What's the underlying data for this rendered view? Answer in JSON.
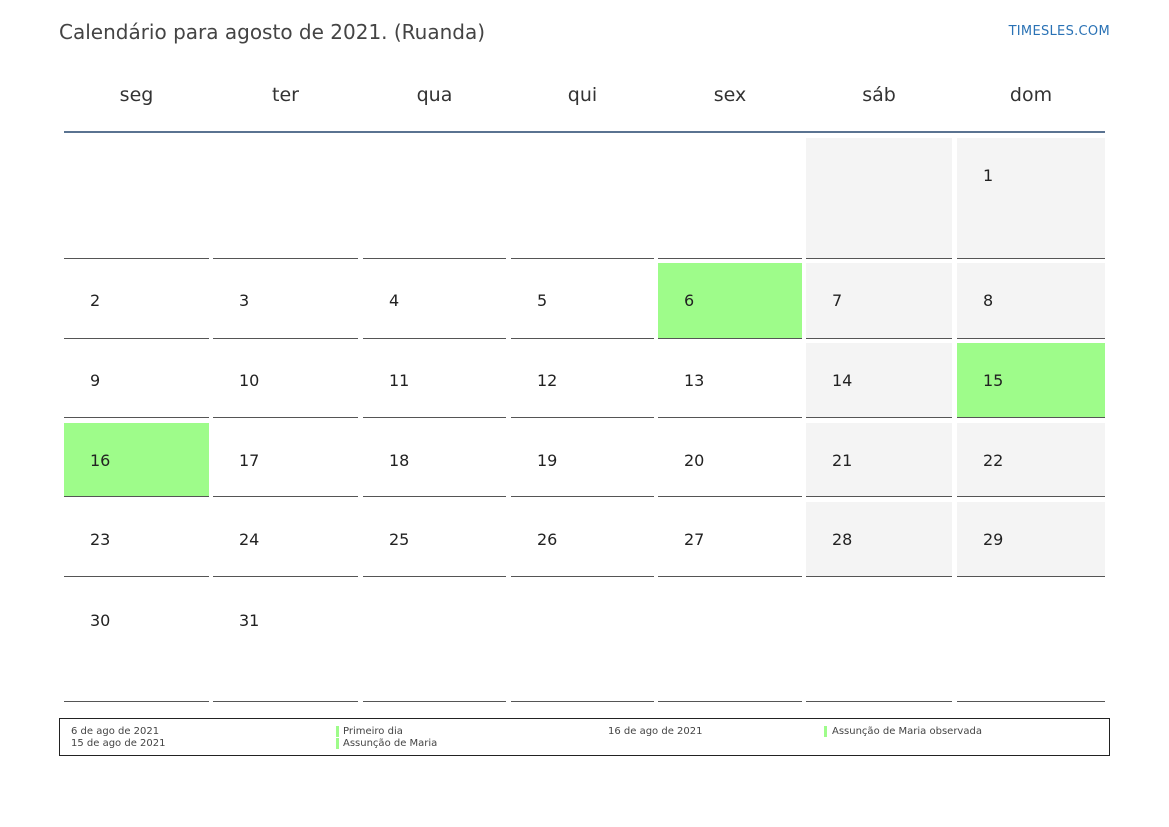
{
  "header": {
    "title": "Calendário para agosto de 2021. (Ruanda)",
    "brand": "TIMESLES.COM"
  },
  "weekdays": [
    "seg",
    "ter",
    "qua",
    "qui",
    "sex",
    "sáb",
    "dom"
  ],
  "colors": {
    "holiday": "#9efc8a",
    "weekend": "#f4f4f4",
    "header_line": "#5a7391"
  },
  "weeks": [
    [
      "",
      "",
      "",
      "",
      "",
      "",
      "1"
    ],
    [
      "2",
      "3",
      "4",
      "5",
      "6",
      "7",
      "8"
    ],
    [
      "9",
      "10",
      "11",
      "12",
      "13",
      "14",
      "15"
    ],
    [
      "16",
      "17",
      "18",
      "19",
      "20",
      "21",
      "22"
    ],
    [
      "23",
      "24",
      "25",
      "26",
      "27",
      "28",
      "29"
    ],
    [
      "30",
      "31",
      "",
      "",
      "",
      "",
      ""
    ]
  ],
  "holidays": [
    "6",
    "15",
    "16"
  ],
  "legend": {
    "col1": [
      "6 de ago de 2021",
      "15 de ago de 2021"
    ],
    "col2": [
      "Primeiro dia",
      "Assunção de Maria"
    ],
    "col3": [
      "16 de ago de 2021"
    ],
    "col4": [
      "Assunção de Maria observada"
    ]
  }
}
